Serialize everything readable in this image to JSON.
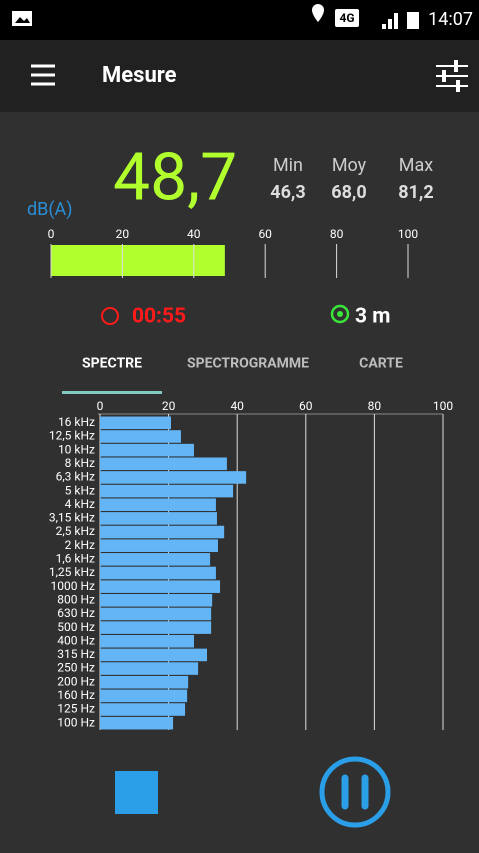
{
  "status_bar": {
    "network": "4G",
    "time": "14:07"
  },
  "app_bar": {
    "title": "Mesure"
  },
  "meter": {
    "level": {
      "value": 48.7,
      "label": "48,7",
      "xlim": [
        0,
        100
      ],
      "xticks": [
        0,
        20,
        40,
        60,
        80,
        100
      ],
      "color": "#b2ff2e"
    },
    "unit": "dB(A)",
    "stats": [
      {
        "label": "Min",
        "value": "46,3"
      },
      {
        "label": "Moy",
        "value": "68,0"
      },
      {
        "label": "Max",
        "value": "81,2"
      }
    ],
    "timer": "00:55",
    "distance": "3 m"
  },
  "tabs": [
    "SPECTRE",
    "SPECTROGRAMME",
    "CARTE"
  ],
  "chart_data": {
    "type": "bar",
    "orientation": "horizontal",
    "color": "#64b5f6",
    "categories": [
      "16 kHz",
      "12,5 kHz",
      "10 kHz",
      "8 kHz",
      "6,3 kHz",
      "5 kHz",
      "4 kHz",
      "3,15 kHz",
      "2,5 kHz",
      "2 kHz",
      "1,6 kHz",
      "1,25 kHz",
      "1000 Hz",
      "800 Hz",
      "630 Hz",
      "500 Hz",
      "400 Hz",
      "315 Hz",
      "250 Hz",
      "200 Hz",
      "160 Hz",
      "125 Hz",
      "100 Hz"
    ],
    "values": [
      20.7,
      23.6,
      27.4,
      37,
      42.6,
      38.8,
      33.8,
      34.1,
      36.2,
      34.4,
      32.1,
      33.8,
      35,
      32.7,
      32.4,
      32.4,
      27.4,
      31.2,
      28.6,
      25.7,
      25.4,
      24.8,
      21.3
    ],
    "xlim": [
      0,
      100
    ],
    "xticks": [
      0,
      20,
      40,
      60,
      80,
      100
    ],
    "grid": true
  }
}
